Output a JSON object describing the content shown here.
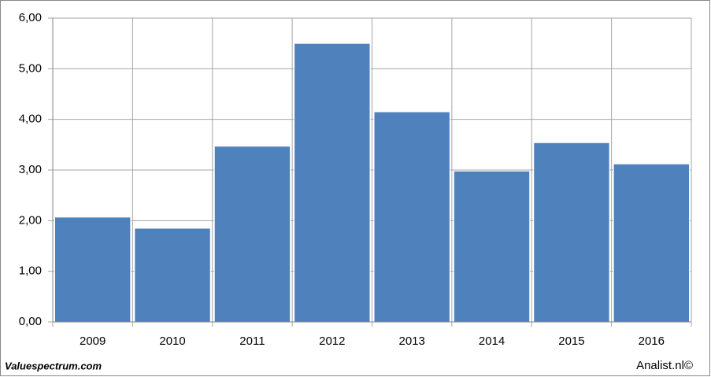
{
  "chart_data": {
    "type": "bar",
    "categories": [
      "2009",
      "2010",
      "2011",
      "2012",
      "2013",
      "2014",
      "2015",
      "2016"
    ],
    "values": [
      2.07,
      1.85,
      3.47,
      5.5,
      4.15,
      2.98,
      3.54,
      3.12
    ],
    "color": "#4f81bd",
    "ylim": [
      0,
      6
    ],
    "yticks": [
      {
        "value": 0,
        "label": "0,00"
      },
      {
        "value": 1,
        "label": "1,00"
      },
      {
        "value": 2,
        "label": "2,00"
      },
      {
        "value": 3,
        "label": "3,00"
      },
      {
        "value": 4,
        "label": "4,00"
      },
      {
        "value": 5,
        "label": "5,00"
      },
      {
        "value": 6,
        "label": "6,00"
      }
    ],
    "grid": true,
    "source": "Valuespectrum.com",
    "credit": "Analist.nl©"
  }
}
